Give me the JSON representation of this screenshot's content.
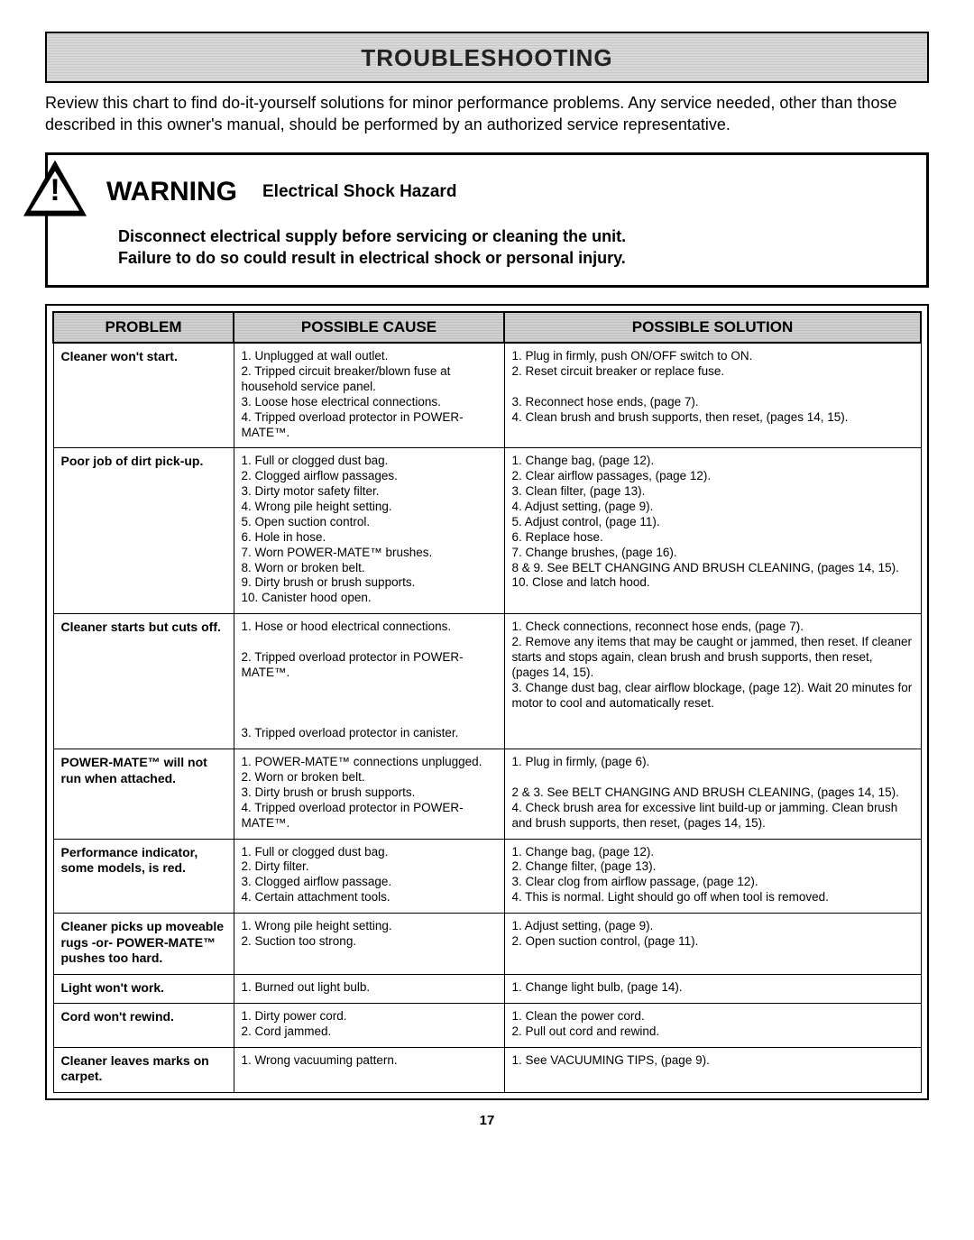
{
  "title": "TROUBLESHOOTING",
  "intro": "Review this chart to find do-it-yourself solutions for minor performance problems. Any service needed, other than those described in this owner's manual, should be performed by an authorized service representative.",
  "warning": {
    "word": "WARNING",
    "sub": "Electrical Shock Hazard",
    "body1": "Disconnect electrical supply before servicing or cleaning the unit.",
    "body2": "Failure to do so could result in electrical shock or personal injury."
  },
  "headers": {
    "c1": "PROBLEM",
    "c2": "POSSIBLE CAUSE",
    "c3": "POSSIBLE SOLUTION"
  },
  "rows": [
    {
      "problem": "Cleaner won't start.",
      "causes": "1.  Unplugged at wall outlet.\n2.  Tripped circuit breaker/blown fuse at household service panel.\n3.  Loose hose electrical connections.\n4.  Tripped overload protector in POWER-MATE™.",
      "solutions": "1.  Plug in firmly, push ON/OFF switch to ON.\n2.  Reset circuit breaker or replace fuse.\n\n3.  Reconnect hose ends, (page 7).\n4.  Clean brush and brush supports, then reset, (pages 14, 15)."
    },
    {
      "problem": "Poor job of dirt pick-up.",
      "causes": "1.  Full or clogged dust bag.\n2.  Clogged airflow passages.\n3.  Dirty motor safety filter.\n4.  Wrong pile height setting.\n5.  Open suction control.\n6.  Hole in hose.\n7.  Worn POWER-MATE™ brushes.\n8.  Worn or broken belt.\n9.  Dirty brush or brush supports.\n10. Canister hood open.",
      "solutions": "1.  Change bag, (page 12).\n2.  Clear airflow passages, (page 12).\n3.  Clean filter, (page 13).\n4.  Adjust setting, (page 9).\n5.  Adjust control, (page 11).\n6.  Replace hose.\n7.  Change brushes, (page 16).\n8 & 9.  See BELT CHANGING AND BRUSH CLEANING, (pages 14, 15).\n10. Close and latch hood."
    },
    {
      "problem": "Cleaner starts but cuts off.",
      "causes": "1.  Hose or hood electrical connections.\n\n2.  Tripped overload protector in POWER-MATE™.\n\n\n\n3.  Tripped overload protector in canister.",
      "solutions": "1.  Check connections, reconnect hose ends, (page 7).\n2.  Remove any items that may be caught or jammed, then reset. If cleaner starts and stops again, clean brush and brush supports, then reset, (pages 14, 15).\n3.  Change dust bag, clear airflow blockage, (page 12). Wait 20 minutes for motor to cool and automatically reset."
    },
    {
      "problem": "POWER-MATE™ will not run when attached.",
      "causes": "1.  POWER-MATE™ connections unplugged.\n2.  Worn or broken belt.\n3.  Dirty brush or brush supports.\n4.  Tripped overload protector in POWER-MATE™.",
      "solutions": "1.  Plug in firmly, (page 6).\n\n2 & 3.  See BELT CHANGING AND BRUSH CLEANING, (pages 14, 15).\n4.  Check brush area for excessive lint build-up or jamming. Clean brush and brush supports, then reset, (pages 14, 15)."
    },
    {
      "problem": "Performance indicator, some models, is red.",
      "causes": "1.  Full or clogged dust bag.\n2.  Dirty filter.\n3.  Clogged airflow passage.\n4.  Certain attachment tools.",
      "solutions": "1.  Change bag, (page 12).\n2.  Change filter, (page 13).\n3.  Clear clog from airflow passage, (page 12).\n4.  This is normal. Light should go off when tool is removed."
    },
    {
      "problem": "Cleaner picks up moveable rugs -or- POWER-MATE™ pushes too hard.",
      "causes": "1.  Wrong pile height setting.\n2.  Suction too strong.",
      "solutions": "1.  Adjust setting, (page 9).\n2.  Open suction control, (page 11)."
    },
    {
      "problem": "Light won't work.",
      "causes": "1.  Burned out light bulb.",
      "solutions": "1.  Change light bulb, (page 14)."
    },
    {
      "problem": "Cord won't rewind.",
      "causes": "1.  Dirty power cord.\n2.  Cord jammed.",
      "solutions": "1.  Clean the power cord.\n2.  Pull out cord and rewind."
    },
    {
      "problem": "Cleaner leaves marks on carpet.",
      "causes": "1.  Wrong vacuuming pattern.",
      "solutions": "1.  See VACUUMING TIPS, (page 9)."
    }
  ],
  "page_number": "17"
}
